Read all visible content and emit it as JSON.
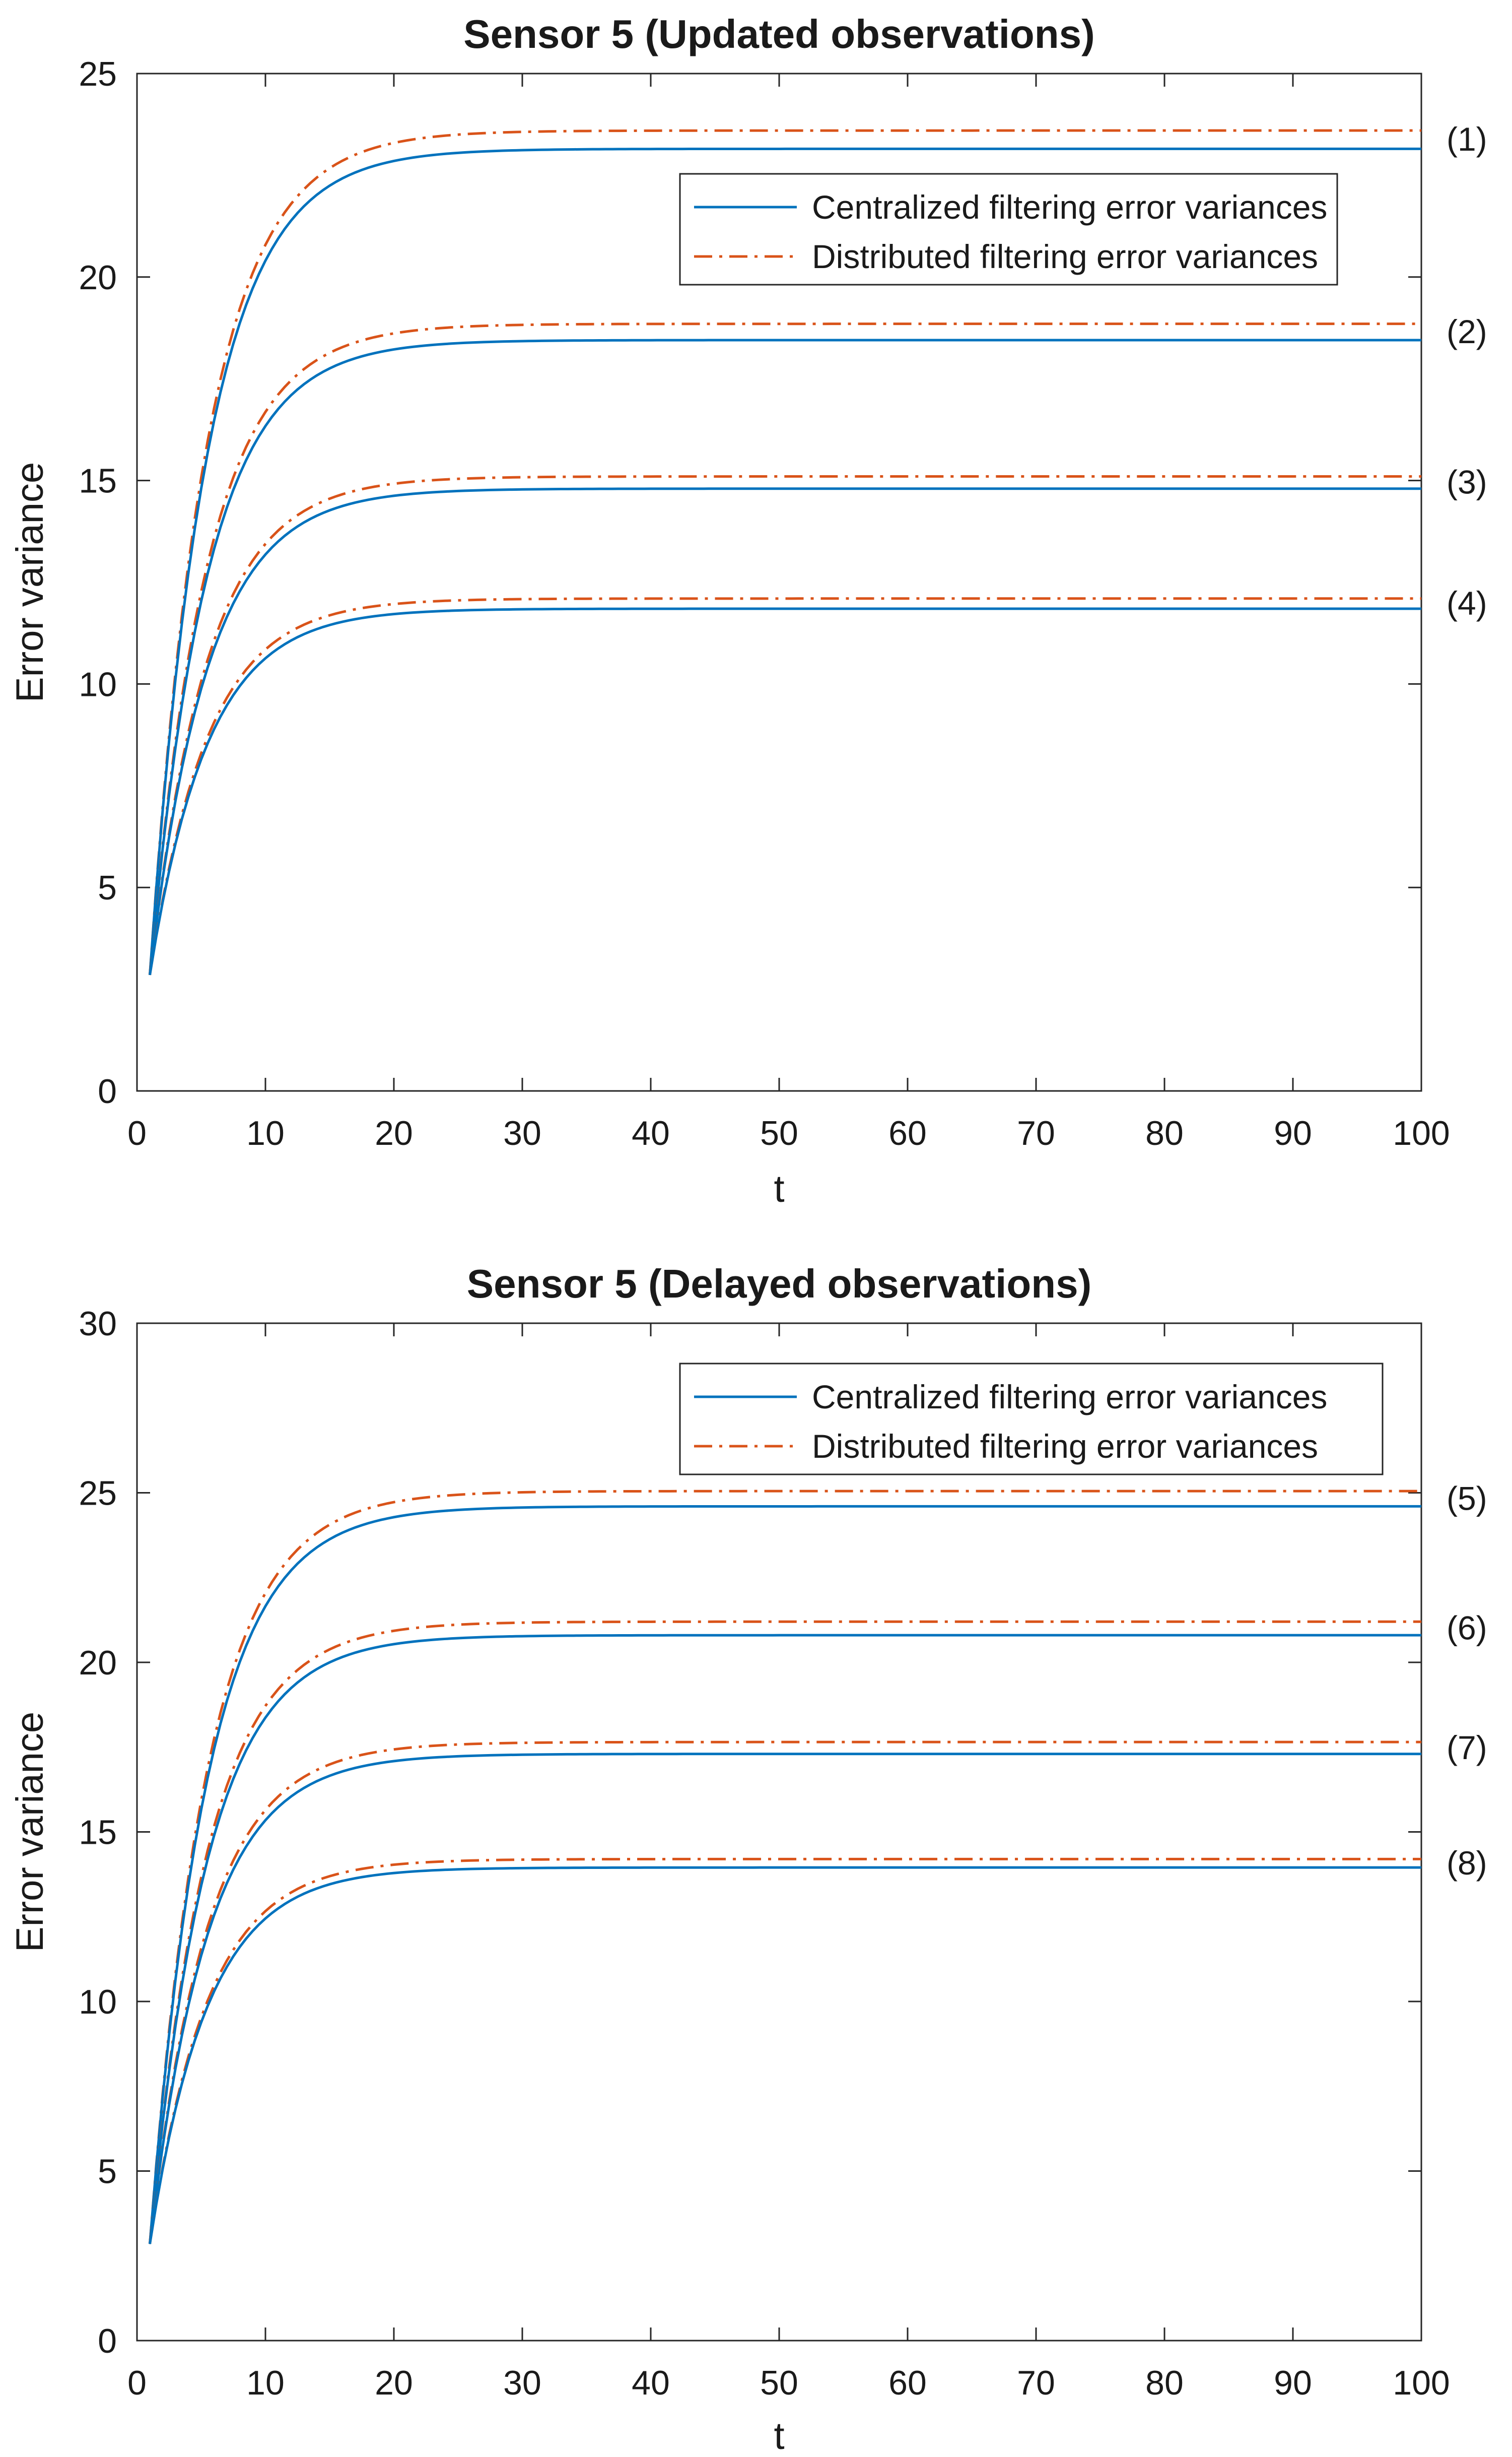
{
  "chart_data": [
    {
      "type": "line",
      "title": "Sensor 5 (Updated observations)",
      "xlabel": "t",
      "ylabel": "Error variance",
      "xlim": [
        0,
        100
      ],
      "ylim": [
        0,
        25
      ],
      "xticks": [
        0,
        10,
        20,
        30,
        40,
        50,
        60,
        70,
        80,
        90,
        100
      ],
      "yticks": [
        0,
        5,
        10,
        15,
        20,
        25
      ],
      "grid": false,
      "legend_position": "top-right",
      "legend": [
        "Centralized filtering error variances",
        "Distributed filtering error variances"
      ],
      "x_start": 1,
      "y_start": 2.85,
      "time_constant": 4.5,
      "curves": [
        {
          "label": "(1)",
          "centralized_final": 23.15,
          "distributed_final": 23.6
        },
        {
          "label": "(2)",
          "centralized_final": 18.45,
          "distributed_final": 18.85
        },
        {
          "label": "(3)",
          "centralized_final": 14.8,
          "distributed_final": 15.1
        },
        {
          "label": "(4)",
          "centralized_final": 11.85,
          "distributed_final": 12.1
        }
      ]
    },
    {
      "type": "line",
      "title": "Sensor 5 (Delayed observations)",
      "xlabel": "t",
      "ylabel": "Error variance",
      "xlim": [
        0,
        100
      ],
      "ylim": [
        0,
        30
      ],
      "xticks": [
        0,
        10,
        20,
        30,
        40,
        50,
        60,
        70,
        80,
        90,
        100
      ],
      "yticks": [
        0,
        5,
        10,
        15,
        20,
        25,
        30
      ],
      "grid": false,
      "legend_position": "top-right",
      "legend": [
        "Centralized filtering error variances",
        "Distributed filtering error variances"
      ],
      "x_start": 1,
      "y_start": 2.85,
      "time_constant": 4.5,
      "curves": [
        {
          "label": "(5)",
          "centralized_final": 24.6,
          "distributed_final": 25.05
        },
        {
          "label": "(6)",
          "centralized_final": 20.8,
          "distributed_final": 21.2
        },
        {
          "label": "(7)",
          "centralized_final": 17.3,
          "distributed_final": 17.65
        },
        {
          "label": "(8)",
          "centralized_final": 13.95,
          "distributed_final": 14.2
        }
      ]
    }
  ],
  "colors": {
    "centralized": "#0072BD",
    "distributed": "#D95319",
    "axis": "#262626",
    "text": "#1a1a1a"
  }
}
